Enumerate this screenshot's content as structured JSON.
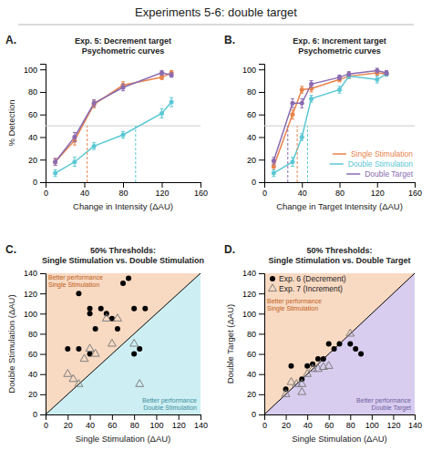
{
  "title": "Experiments 5-6: double target",
  "chart_data": [
    {
      "type": "line",
      "title": "Exp. 5: Decrement target\nPsychometric curves",
      "x_label": "Change in Intensity (ΔAU)",
      "y_label": "% Detection",
      "x": [
        10,
        30,
        50,
        80,
        120,
        130
      ],
      "series": [
        {
          "color": "#E8834A",
          "marker": "circle",
          "values": [
            18,
            37,
            69,
            86,
            93,
            97
          ],
          "errors": [
            3,
            4,
            3,
            3,
            2,
            2
          ]
        },
        {
          "color": "#5BC8D4",
          "marker": "circle",
          "values": [
            8,
            18,
            32,
            42,
            61,
            71
          ],
          "errors": [
            3,
            4,
            3,
            3,
            4,
            4
          ]
        },
        {
          "color": "#8B6BB1",
          "marker": "circle",
          "values": [
            18,
            40,
            70,
            84,
            97,
            95
          ],
          "errors": [
            3,
            4,
            3,
            3,
            2,
            2
          ]
        }
      ],
      "xlim": [
        0,
        160
      ],
      "ylim": [
        0,
        105
      ],
      "xticks": [
        0,
        40,
        80,
        120,
        160
      ],
      "yticks": [
        0,
        20,
        40,
        60,
        80,
        100
      ],
      "grid": false,
      "hline": 50,
      "vlines": [
        {
          "value": 43,
          "color": "#E8834A"
        },
        {
          "value": 93,
          "color": "#5BC8D4"
        }
      ],
      "annotations": [
        {
          "text": "A.",
          "position": "panel-label"
        }
      ]
    },
    {
      "type": "line",
      "title": "Exp. 6: Increment target\nPsychometric curves",
      "x_label": "Change in Target Intensity (ΔAU)",
      "x": [
        10,
        30,
        40,
        50,
        80,
        90,
        120,
        130
      ],
      "series": [
        {
          "name": "Single Stimulation",
          "color": "#E8834A",
          "marker": "circle",
          "values": [
            14,
            60,
            82,
            83,
            91,
            94,
            97,
            96
          ],
          "errors": [
            3,
            4,
            3,
            3,
            2,
            2,
            2,
            2
          ]
        },
        {
          "name": "Double Stimulation",
          "color": "#5BC8D4",
          "marker": "circle",
          "values": [
            8,
            18,
            40,
            74,
            82,
            94,
            91,
            96
          ],
          "errors": [
            3,
            4,
            3,
            3,
            3,
            2,
            3,
            2
          ]
        },
        {
          "name": "Double Target",
          "color": "#8B6BB1",
          "marker": "circle",
          "values": [
            19,
            70,
            70,
            87,
            93,
            96,
            99,
            97
          ],
          "errors": [
            3,
            4,
            4,
            3,
            2,
            2,
            2,
            2
          ]
        }
      ],
      "xlim": [
        0,
        160
      ],
      "ylim": [
        0,
        105
      ],
      "xticks": [
        0,
        40,
        80,
        120,
        160
      ],
      "yticks": [
        0,
        20,
        40,
        60,
        80,
        100
      ],
      "grid": false,
      "legend": "lower right",
      "hline": 50,
      "vlines": [
        {
          "value": 35,
          "color": "#E8834A"
        },
        {
          "value": 46,
          "color": "#5BC8D4"
        },
        {
          "value": 25,
          "color": "#8B6BB1"
        }
      ],
      "annotations": [
        {
          "text": "B.",
          "position": "panel-label"
        }
      ]
    },
    {
      "type": "scatter",
      "title": "50% Thresholds:\nSingle Stimulation vs. Double Stimulation",
      "x_label": "Single Stimulation (ΔAU)",
      "y_label": "Double Stimulation (ΔAU)",
      "series": [
        {
          "color": "black",
          "marker": "circle",
          "x": [
            20,
            30,
            30,
            40,
            40,
            40,
            45,
            50,
            55,
            60,
            65,
            70,
            75,
            80,
            80,
            85,
            90
          ],
          "values": [
            65,
            120,
            65,
            105,
            100,
            60,
            85,
            105,
            100,
            95,
            85,
            130,
            135,
            105,
            60,
            65,
            105
          ]
        },
        {
          "color": "gray",
          "marker": "triangle-open",
          "x": [
            20,
            25,
            30,
            35,
            40,
            45,
            55,
            60,
            65,
            80,
            85
          ],
          "values": [
            40,
            35,
            30,
            55,
            65,
            60,
            95,
            70,
            95,
            70,
            30
          ]
        }
      ],
      "xlim": [
        0,
        140
      ],
      "ylim": [
        0,
        140
      ],
      "xticks": [
        0,
        20,
        40,
        60,
        80,
        100,
        120,
        140
      ],
      "yticks": [
        0,
        20,
        40,
        60,
        80,
        100,
        120,
        140
      ],
      "grid": false,
      "diagonal": true,
      "regions": [
        {
          "side": "above",
          "color": "#F5C9A8"
        },
        {
          "side": "below",
          "color": "#B8E8EE"
        }
      ],
      "annotations": [
        {
          "text": "C.",
          "position": "panel-label"
        },
        {
          "text": "Better performance\nSingle Stimulation",
          "color": "#C06020",
          "position": "upper-left"
        },
        {
          "text": "Better performance\nDouble Stimulation",
          "color": "#4090A0",
          "position": "lower-right"
        }
      ]
    },
    {
      "type": "scatter",
      "title": "50% Thresholds:\nSingle Stimulation vs. Double Target",
      "x_label": "Single Stimulation (ΔAU)",
      "y_label": "Double Target (ΔAU)",
      "series": [
        {
          "name": "Exp. 6 (Decrement)",
          "color": "black",
          "marker": "circle",
          "x": [
            20,
            25,
            35,
            40,
            45,
            50,
            55,
            60,
            65,
            70,
            80,
            85,
            90
          ],
          "values": [
            25,
            48,
            35,
            48,
            50,
            55,
            55,
            70,
            65,
            70,
            70,
            65,
            60
          ]
        },
        {
          "name": "Exp. 7 (Increment)",
          "color": "gray",
          "marker": "triangle-open",
          "x": [
            20,
            25,
            30,
            35,
            35,
            40,
            45,
            50,
            55,
            60,
            80
          ],
          "values": [
            20,
            32,
            30,
            30,
            22,
            40,
            45,
            45,
            47,
            48,
            80
          ]
        }
      ],
      "xlim": [
        0,
        140
      ],
      "ylim": [
        0,
        140
      ],
      "xticks": [
        0,
        20,
        40,
        60,
        80,
        100,
        120,
        140
      ],
      "yticks": [
        0,
        20,
        40,
        60,
        80,
        100,
        120,
        140
      ],
      "grid": false,
      "legend": "upper left",
      "diagonal": true,
      "regions": [
        {
          "side": "above",
          "color": "#F5C9A8"
        },
        {
          "side": "below",
          "color": "#C8B8E8"
        }
      ],
      "annotations": [
        {
          "text": "D.",
          "position": "panel-label"
        },
        {
          "text": "Better performance\nSingle Stimulation",
          "color": "#C06020",
          "position": "upper-left"
        },
        {
          "text": "Better performance\nDouble Target",
          "color": "#7060A0",
          "position": "lower-right"
        }
      ]
    }
  ]
}
